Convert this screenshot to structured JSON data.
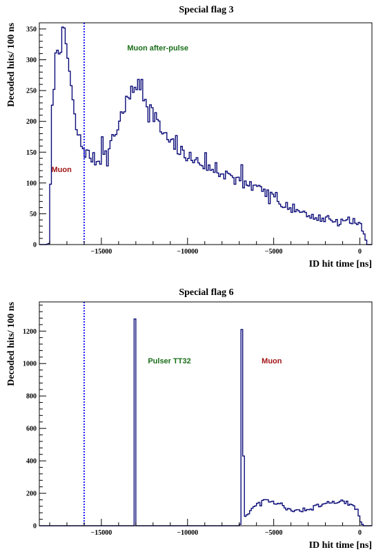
{
  "chart_data": [
    {
      "type": "histogram",
      "title": "Special flag 3",
      "xlabel": "ID hit time [ns]",
      "ylabel": "Decoded hits/ 100 ns",
      "xlim": [
        -18600,
        700
      ],
      "ylim": [
        0,
        360
      ],
      "xticks": [
        -15000,
        -10000,
        -5000,
        0
      ],
      "xtick_labels": [
        "−15000",
        "−10000",
        "−5000",
        "0"
      ],
      "yticks": [
        0,
        50,
        100,
        150,
        200,
        250,
        300,
        350
      ],
      "ytick_labels": [
        "0",
        "50",
        "100",
        "150",
        "200",
        "250",
        "300",
        "350"
      ],
      "bin_width": 100,
      "line_color": "#0a0a78",
      "cut_line_x": -16000,
      "cut_line_color": "#1a1aff",
      "annotations": [
        {
          "text": "Muon after-pulse",
          "x": -13500,
          "y": 315,
          "color": "#1a6e1a"
        },
        {
          "text": "Muon",
          "x": -17900,
          "y": 118,
          "color": "#a01414"
        }
      ],
      "profile": [
        [
          -18200,
          0
        ],
        [
          -18000,
          2
        ],
        [
          -17900,
          190
        ],
        [
          -17800,
          240
        ],
        [
          -17700,
          290
        ],
        [
          -17600,
          310
        ],
        [
          -17500,
          330
        ],
        [
          -17400,
          318
        ],
        [
          -17300,
          334
        ],
        [
          -17200,
          340
        ],
        [
          -17100,
          332
        ],
        [
          -17000,
          318
        ],
        [
          -16900,
          290
        ],
        [
          -16800,
          270
        ],
        [
          -16700,
          240
        ],
        [
          -16600,
          215
        ],
        [
          -16500,
          195
        ],
        [
          -16400,
          182
        ],
        [
          -16300,
          175
        ],
        [
          -16200,
          165
        ],
        [
          -16100,
          160
        ],
        [
          -16000,
          152
        ],
        [
          -15800,
          147
        ],
        [
          -15600,
          142
        ],
        [
          -15400,
          138
        ],
        [
          -15200,
          135
        ],
        [
          -15000,
          140
        ],
        [
          -14800,
          145
        ],
        [
          -14600,
          150
        ],
        [
          -14400,
          162
        ],
        [
          -14200,
          178
        ],
        [
          -14000,
          195
        ],
        [
          -13800,
          215
        ],
        [
          -13600,
          228
        ],
        [
          -13400,
          238
        ],
        [
          -13200,
          245
        ],
        [
          -13000,
          255
        ],
        [
          -12900,
          262
        ],
        [
          -12800,
          250
        ],
        [
          -12600,
          245
        ],
        [
          -12400,
          235
        ],
        [
          -12200,
          225
        ],
        [
          -12000,
          212
        ],
        [
          -11800,
          200
        ],
        [
          -11600,
          188
        ],
        [
          -11400,
          180
        ],
        [
          -11200,
          172
        ],
        [
          -11000,
          165
        ],
        [
          -10800,
          160
        ],
        [
          -10600,
          155
        ],
        [
          -10400,
          150
        ],
        [
          -10200,
          148
        ],
        [
          -10000,
          145
        ],
        [
          -9800,
          142
        ],
        [
          -9600,
          138
        ],
        [
          -9400,
          135
        ],
        [
          -9200,
          132
        ],
        [
          -9000,
          128
        ],
        [
          -8800,
          126
        ],
        [
          -8600,
          124
        ],
        [
          -8400,
          121
        ],
        [
          -8200,
          119
        ],
        [
          -8000,
          116
        ],
        [
          -7800,
          113
        ],
        [
          -7600,
          110
        ],
        [
          -7400,
          108
        ],
        [
          -7200,
          105
        ],
        [
          -7000,
          103
        ],
        [
          -6500,
          97
        ],
        [
          -6000,
          90
        ],
        [
          -5500,
          83
        ],
        [
          -5000,
          76
        ],
        [
          -4500,
          68
        ],
        [
          -4000,
          61
        ],
        [
          -3500,
          54
        ],
        [
          -3000,
          48
        ],
        [
          -2500,
          44
        ],
        [
          -2000,
          41
        ],
        [
          -1500,
          39
        ],
        [
          -1000,
          38
        ],
        [
          -500,
          37
        ],
        [
          0,
          38
        ],
        [
          100,
          30
        ],
        [
          200,
          22
        ],
        [
          300,
          12
        ],
        [
          400,
          0
        ]
      ],
      "fluctuations": [
        [
          -14950,
          42
        ],
        [
          -14700,
          -12
        ],
        [
          -14350,
          18
        ],
        [
          -13050,
          12
        ],
        [
          -12650,
          22
        ],
        [
          -12250,
          -15
        ],
        [
          -11850,
          10
        ],
        [
          -10650,
          12
        ],
        [
          -9750,
          -10
        ],
        [
          -8950,
          14
        ],
        [
          -8650,
          -8
        ],
        [
          -8350,
          12
        ],
        [
          -7850,
          -12
        ],
        [
          -7550,
          10
        ],
        [
          -6850,
          22
        ],
        [
          -6450,
          -10
        ],
        [
          -6150,
          8
        ],
        [
          -5650,
          9
        ],
        [
          -5250,
          -9
        ],
        [
          -4850,
          10
        ],
        [
          -3950,
          -8
        ],
        [
          -3250,
          9
        ],
        [
          -2650,
          -7
        ],
        [
          -1850,
          8
        ],
        [
          -1250,
          -6
        ],
        [
          -650,
          7
        ],
        [
          -300,
          -6
        ]
      ]
    },
    {
      "type": "histogram",
      "title": "Special flag 6",
      "xlabel": "ID hit time [ns]",
      "ylabel": "Decoded hits/ 100 ns",
      "xlim": [
        -18600,
        700
      ],
      "ylim": [
        0,
        1380
      ],
      "xticks": [
        -15000,
        -10000,
        -5000,
        0
      ],
      "xtick_labels": [
        "−15000",
        "−10000",
        "−5000",
        "0"
      ],
      "yticks": [
        0,
        200,
        400,
        600,
        800,
        1000,
        1200
      ],
      "ytick_labels": [
        "0",
        "200",
        "400",
        "600",
        "800",
        "1000",
        "1200"
      ],
      "bin_width": 100,
      "line_color": "#0a0a78",
      "cut_line_x": -16000,
      "cut_line_color": "#1a1aff",
      "annotations": [
        {
          "text": "Pulser TT32",
          "x": -12300,
          "y": 1000,
          "color": "#1a6e1a"
        },
        {
          "text": "Muon",
          "x": -5700,
          "y": 1000,
          "color": "#a01414"
        }
      ],
      "spikes": [
        {
          "x": -13100,
          "y": 1275
        },
        {
          "x": -6900,
          "y": 1210
        },
        {
          "x": -6800,
          "y": 430
        }
      ],
      "profile": [
        [
          -18300,
          0
        ],
        [
          -7000,
          0
        ],
        [
          -6700,
          60
        ],
        [
          -6600,
          50
        ],
        [
          -6500,
          75
        ],
        [
          -6300,
          95
        ],
        [
          -6100,
          120
        ],
        [
          -5900,
          135
        ],
        [
          -5700,
          148
        ],
        [
          -5500,
          158
        ],
        [
          -5300,
          155
        ],
        [
          -5100,
          145
        ],
        [
          -4900,
          138
        ],
        [
          -4700,
          130
        ],
        [
          -4500,
          118
        ],
        [
          -4300,
          108
        ],
        [
          -4100,
          100
        ],
        [
          -3900,
          95
        ],
        [
          -3700,
          92
        ],
        [
          -3500,
          90
        ],
        [
          -3300,
          95
        ],
        [
          -3100,
          100
        ],
        [
          -2900,
          108
        ],
        [
          -2700,
          115
        ],
        [
          -2500,
          122
        ],
        [
          -2300,
          128
        ],
        [
          -2100,
          132
        ],
        [
          -1900,
          138
        ],
        [
          -1700,
          142
        ],
        [
          -1500,
          145
        ],
        [
          -1300,
          148
        ],
        [
          -1100,
          150
        ],
        [
          -900,
          148
        ],
        [
          -700,
          145
        ],
        [
          -500,
          140
        ],
        [
          -300,
          110
        ],
        [
          -100,
          90
        ],
        [
          0,
          30
        ],
        [
          100,
          15
        ],
        [
          200,
          0
        ]
      ],
      "fluctuations": [
        [
          -6250,
          15
        ],
        [
          -5750,
          -12
        ],
        [
          -5450,
          14
        ],
        [
          -4950,
          -10
        ],
        [
          -4550,
          12
        ],
        [
          -3850,
          -9
        ],
        [
          -3250,
          10
        ],
        [
          -2750,
          -8
        ],
        [
          -2150,
          9
        ],
        [
          -1650,
          -9
        ],
        [
          -1150,
          10
        ],
        [
          -650,
          -8
        ]
      ]
    }
  ]
}
